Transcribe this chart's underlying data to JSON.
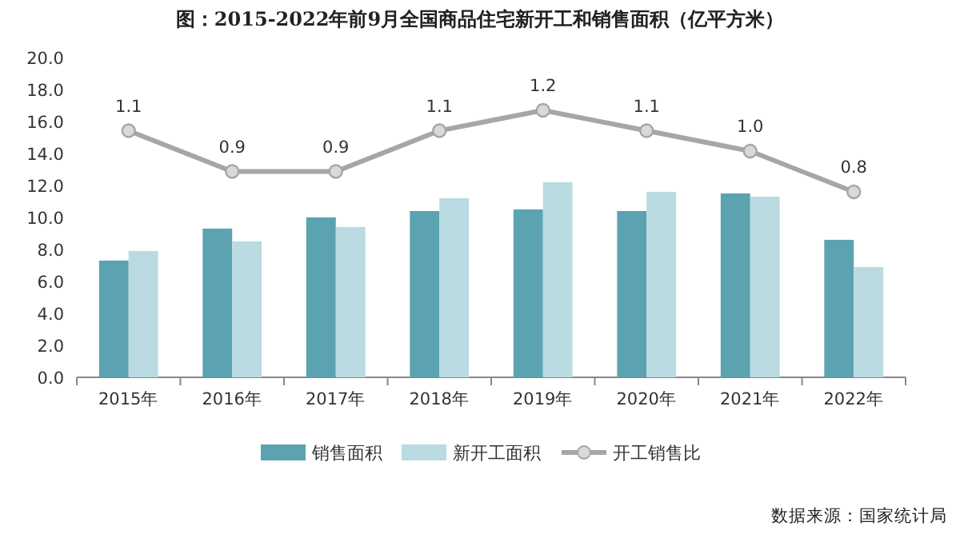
{
  "chart_data": {
    "type": "bar",
    "title": "图：2015-2022年前9月全国商品住宅新开工和销售面积（亿平方米）",
    "categories": [
      "2015年",
      "2016年",
      "2017年",
      "2018年",
      "2019年",
      "2020年",
      "2021年",
      "2022年"
    ],
    "series": [
      {
        "name": "销售面积",
        "color": "#5ba3b0",
        "values": [
          7.3,
          9.3,
          10.0,
          10.4,
          10.5,
          10.4,
          11.5,
          8.6
        ]
      },
      {
        "name": "新开工面积",
        "color": "#b9dbe1",
        "values": [
          7.9,
          8.5,
          9.4,
          11.2,
          12.2,
          11.6,
          11.3,
          6.9
        ]
      },
      {
        "name": "开工销售比",
        "type": "line",
        "axis": "y2",
        "color": "#a6a6a6",
        "marker": "circle",
        "values": [
          1.1,
          0.9,
          0.9,
          1.1,
          1.2,
          1.1,
          1.0,
          0.8
        ],
        "value_labels": [
          "1.1",
          "0.9",
          "0.9",
          "1.1",
          "1.2",
          "1.1",
          "1.0",
          "0.8"
        ]
      }
    ],
    "ylim": [
      0,
      20
    ],
    "yticks": [
      {
        "value": 0,
        "label": "0.0"
      },
      {
        "value": 2,
        "label": "2.0"
      },
      {
        "value": 4,
        "label": "4.0"
      },
      {
        "value": 6,
        "label": "6.0"
      },
      {
        "value": 8,
        "label": "8.0"
      },
      {
        "value": 10,
        "label": "10.0"
      },
      {
        "value": 12,
        "label": "12.0"
      },
      {
        "value": 14,
        "label": "14.0"
      },
      {
        "value": 16,
        "label": "16.0"
      },
      {
        "value": 18,
        "label": "18.0"
      },
      {
        "value": 20,
        "label": "20.0"
      }
    ],
    "tick_labels": "xy",
    "grid": false,
    "legend": "bottom",
    "annotations": [
      "数据来源：国家统计局"
    ]
  }
}
